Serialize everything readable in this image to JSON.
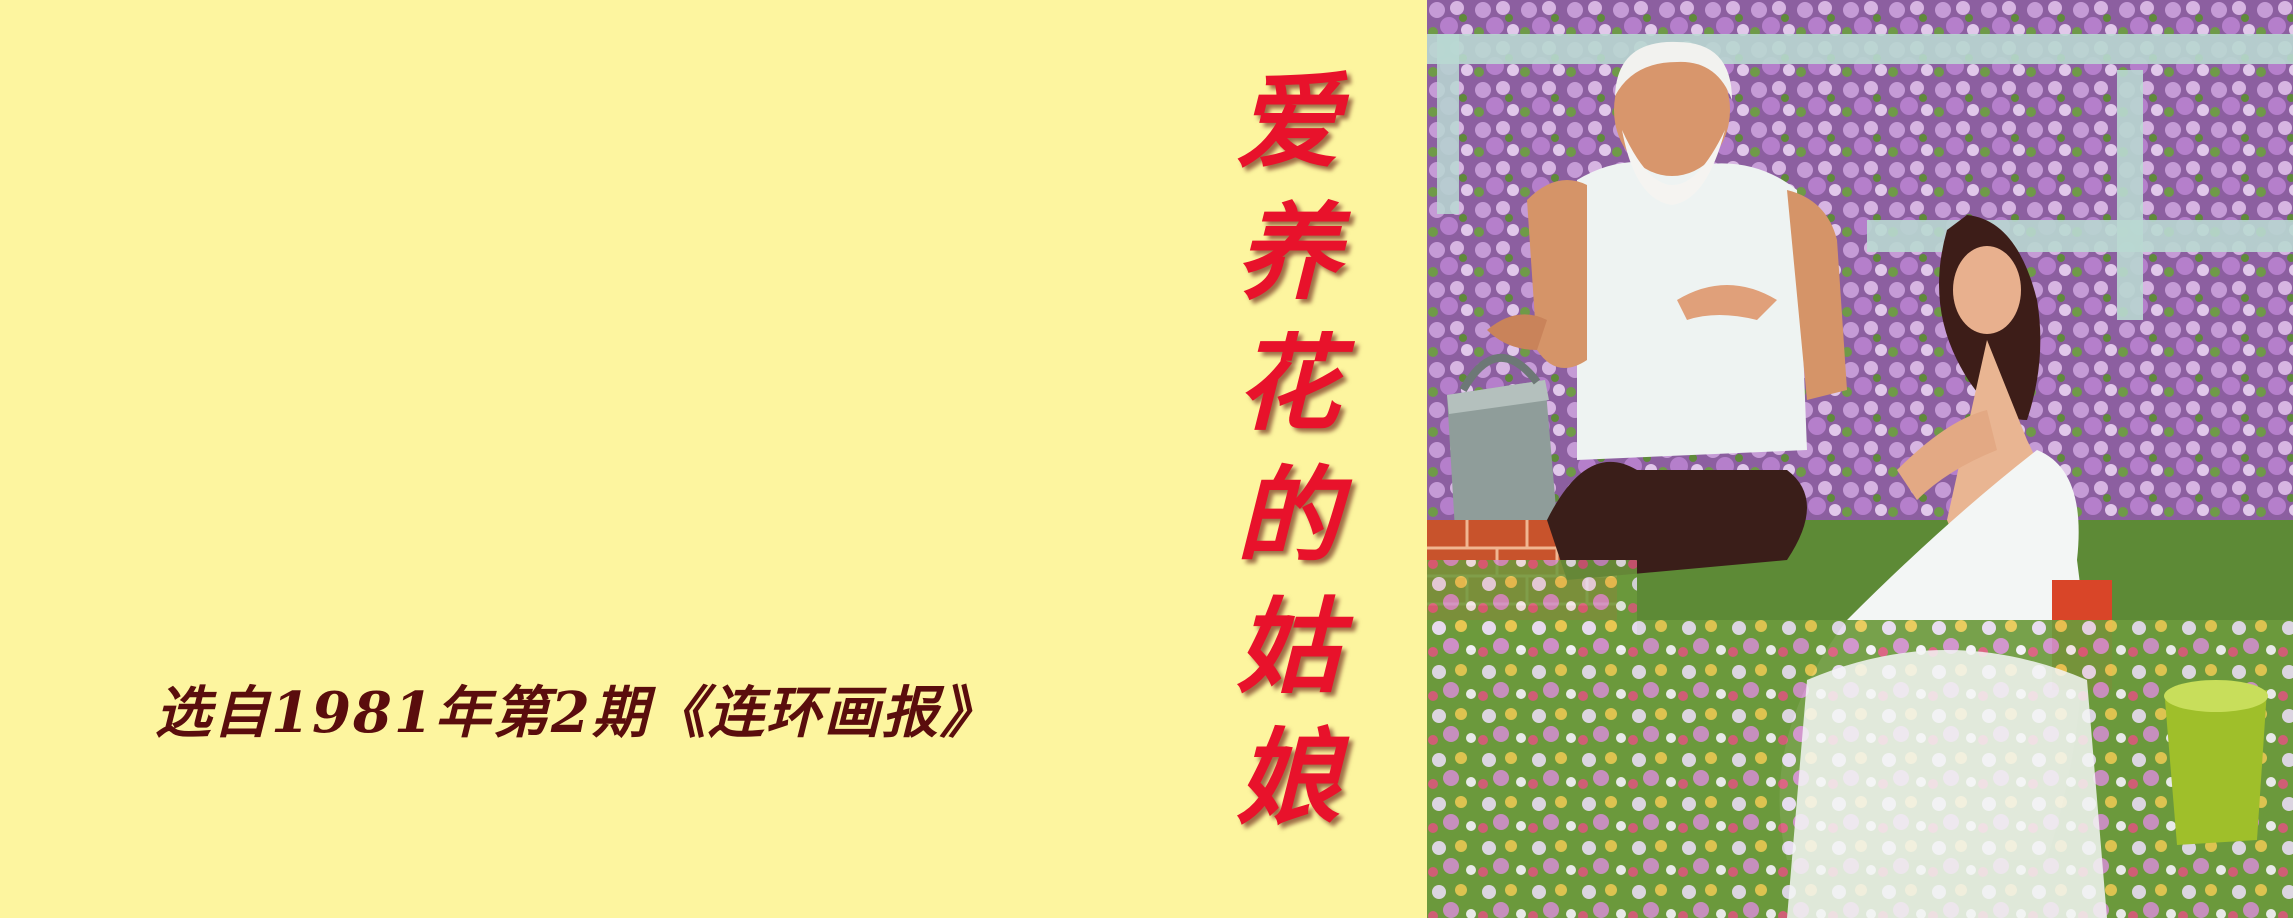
{
  "caption": {
    "text": "选自1981年第2期《连环画报》"
  },
  "title": {
    "chars": [
      "爱",
      "养",
      "花",
      "的",
      "姑",
      "娘"
    ]
  },
  "colors": {
    "background": "#fdf59f",
    "title": "#e8122b",
    "caption": "#5a0d0d"
  },
  "illustration": {
    "subject": "painting-old-man-and-young-woman-among-flowers"
  }
}
